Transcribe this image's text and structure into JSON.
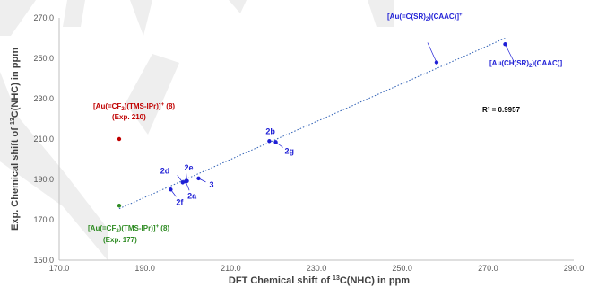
{
  "chart_data": {
    "type": "scatter",
    "xlabel": {
      "pre": "DFT Chemical shift of ",
      "sup": "13",
      "post": "C(NHC) in ppm"
    },
    "ylabel": {
      "pre": "Exp. Chemical shift of ",
      "sup": "13",
      "post": "C(NHC) in ppm"
    },
    "xlim": [
      170,
      290
    ],
    "ylim": [
      150,
      270
    ],
    "x_ticks": [
      "170.0",
      "190.0",
      "210.0",
      "230.0",
      "250.0",
      "270.0",
      "290.0"
    ],
    "y_ticks": [
      "150.0",
      "170.0",
      "190.0",
      "210.0",
      "230.0",
      "250.0",
      "270.0"
    ],
    "grid": false,
    "r_squared": "R² = 0.9957",
    "colors": {
      "blue": "#1f1fd6",
      "red": "#c00000",
      "green": "#2e8b22",
      "trend": "#2e5fb5"
    },
    "trendline": {
      "x": [
        184,
        274
      ],
      "y": [
        175.5,
        260
      ]
    },
    "points": [
      {
        "label": "2a",
        "x": 199.5,
        "y": 189,
        "color": "blue"
      },
      {
        "label": "2b",
        "x": 219,
        "y": 209,
        "color": "blue"
      },
      {
        "label": "2d",
        "x": 198.8,
        "y": 188.5,
        "color": "blue"
      },
      {
        "label": "2e",
        "x": 199.8,
        "y": 189.2,
        "color": "blue"
      },
      {
        "label": "2f",
        "x": 196,
        "y": 185,
        "color": "blue"
      },
      {
        "label": "2g",
        "x": 220.5,
        "y": 208.5,
        "color": "blue"
      },
      {
        "label": "3",
        "x": 202.5,
        "y": 190.5,
        "color": "blue"
      },
      {
        "label": "[Au(=C(SR)2)(CAAC)]+",
        "x": 258,
        "y": 248,
        "color": "blue"
      },
      {
        "label": "[Au(CH(SR)2)(CAAC)]",
        "x": 274,
        "y": 257,
        "color": "blue"
      },
      {
        "label": "[Au(=CF2)(TMS-IPr)]+ (8) (Exp. 210)",
        "x": 184,
        "y": 210,
        "color": "red"
      },
      {
        "label": "[Au(=CF2)(TMS-IPr)]+ (8) (Exp. 177)",
        "x": 184,
        "y": 177,
        "color": "green"
      }
    ]
  }
}
